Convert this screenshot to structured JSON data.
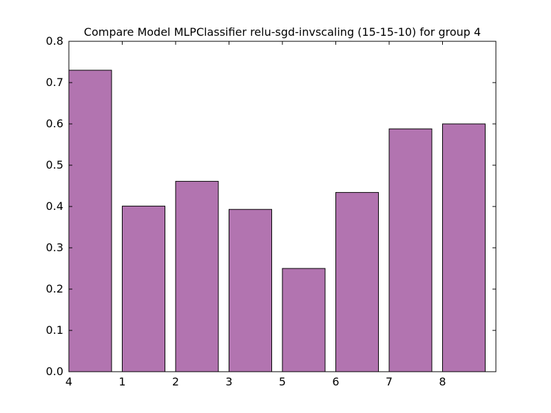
{
  "chart_data": {
    "type": "bar",
    "title": "Compare Model MLPClassifier relu-sgd-invscaling (15-15-10) for group 4",
    "xlabel": "",
    "ylabel": "",
    "categories": [
      "4",
      "1",
      "2",
      "3",
      "5",
      "6",
      "7",
      "8"
    ],
    "values": [
      0.73,
      0.401,
      0.461,
      0.393,
      0.25,
      0.434,
      0.588,
      0.6
    ],
    "ylim": [
      0,
      0.8
    ],
    "yticks": [
      "0.0",
      "0.1",
      "0.2",
      "0.3",
      "0.4",
      "0.5",
      "0.6",
      "0.7",
      "0.8"
    ],
    "xlim": [
      0,
      8
    ],
    "grid": false,
    "bar_color": "#b274b0",
    "edge_color": "#000000"
  }
}
